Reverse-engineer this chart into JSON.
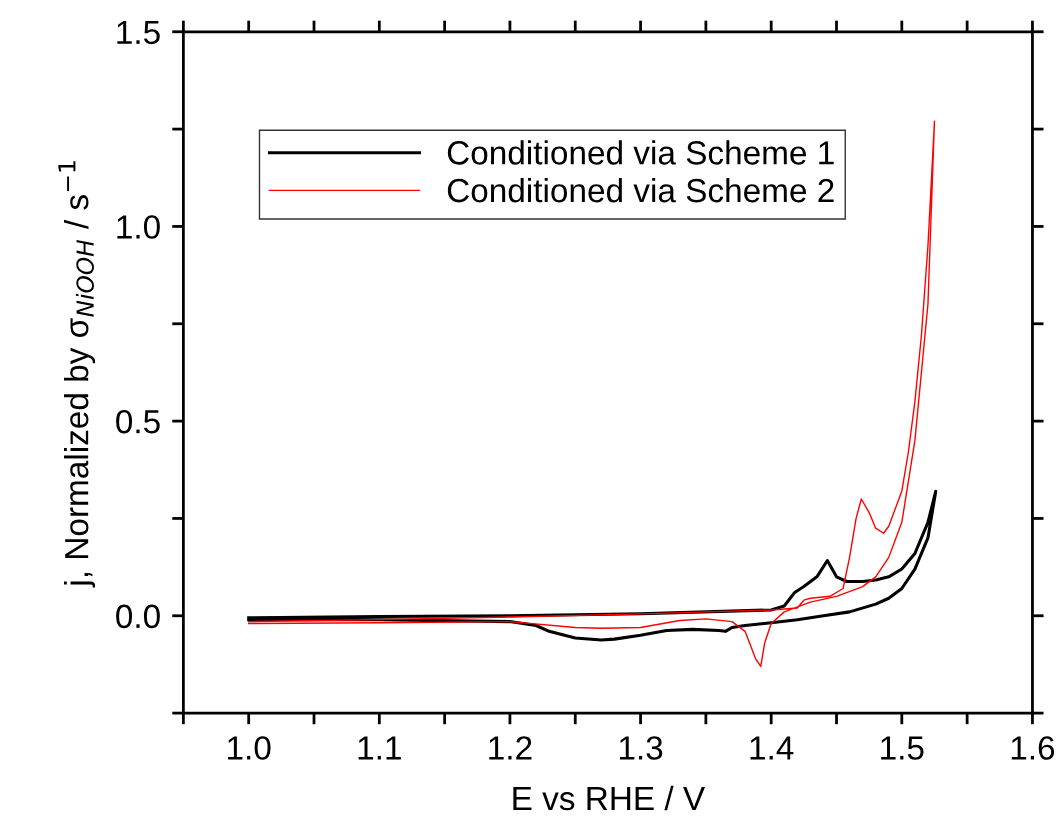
{
  "chart_data": {
    "type": "line",
    "xlabel": "E vs RHE / V",
    "ylabel": "j, Normalized by σ$_{NiOOH}$ / s$^{−1}$",
    "xlim": [
      0.95,
      1.6
    ],
    "ylim": [
      -0.25,
      1.5
    ],
    "xticks": [
      {
        "value": 0.95,
        "label": null
      },
      {
        "value": 1.0,
        "label": "1.0"
      },
      {
        "value": 1.05,
        "label": null
      },
      1.1,
      {
        "value": 1.15,
        "label": null
      },
      1.2,
      {
        "value": 1.25,
        "label": null
      },
      1.3,
      {
        "value": 1.35,
        "label": null
      },
      1.4,
      {
        "value": 1.45,
        "label": null
      },
      1.5,
      {
        "value": 1.55,
        "label": null
      },
      1.6
    ],
    "yticks": [
      {
        "value": -0.25,
        "label": null
      },
      {
        "value": 0.0,
        "label": "0.0"
      },
      {
        "value": 0.25,
        "label": null
      },
      0.5,
      {
        "value": 0.75,
        "label": null
      },
      {
        "value": 1.0,
        "label": "1.0"
      },
      {
        "value": 1.25,
        "label": null
      },
      1.5
    ],
    "legend": "top left",
    "grid": false,
    "marker": "none",
    "line_style": "solid",
    "series": [
      {
        "name": "Conditioned via Scheme 1",
        "color": "#000000",
        "x": [
          1.0,
          1.1,
          1.2,
          1.3,
          1.4,
          1.41,
          1.418,
          1.425,
          1.435,
          1.443,
          1.45,
          1.458,
          1.47,
          1.48,
          1.49,
          1.5,
          1.51,
          1.52,
          1.526,
          1.52,
          1.51,
          1.5,
          1.49,
          1.48,
          1.46,
          1.44,
          1.42,
          1.4,
          1.38,
          1.37,
          1.365,
          1.36,
          1.34,
          1.32,
          1.3,
          1.28,
          1.27,
          1.25,
          1.23,
          1.22,
          1.2,
          1.1,
          1.0
        ],
        "values": [
          -0.005,
          -0.002,
          0.0,
          0.005,
          0.015,
          0.025,
          0.06,
          0.075,
          0.1,
          0.142,
          0.1,
          0.088,
          0.088,
          0.092,
          0.1,
          0.12,
          0.16,
          0.24,
          0.32,
          0.2,
          0.12,
          0.07,
          0.045,
          0.03,
          0.01,
          0.0,
          -0.01,
          -0.018,
          -0.025,
          -0.03,
          -0.04,
          -0.038,
          -0.035,
          -0.038,
          -0.05,
          -0.06,
          -0.062,
          -0.057,
          -0.04,
          -0.025,
          -0.015,
          -0.01,
          -0.01
        ]
      },
      {
        "name": "Conditioned via Scheme 2",
        "color": "#ff0000",
        "x": [
          1.0,
          1.1,
          1.2,
          1.3,
          1.4,
          1.42,
          1.425,
          1.43,
          1.445,
          1.455,
          1.46,
          1.465,
          1.469,
          1.475,
          1.48,
          1.486,
          1.49,
          1.5,
          1.505,
          1.51,
          1.515,
          1.52,
          1.525,
          1.52,
          1.51,
          1.5,
          1.49,
          1.48,
          1.47,
          1.45,
          1.43,
          1.41,
          1.4,
          1.395,
          1.392,
          1.388,
          1.38,
          1.37,
          1.35,
          1.33,
          1.3,
          1.27,
          1.25,
          1.2,
          1.1,
          1.0
        ],
        "values": [
          -0.015,
          -0.01,
          -0.003,
          0.005,
          0.015,
          0.02,
          0.04,
          0.045,
          0.05,
          0.07,
          0.15,
          0.25,
          0.3,
          0.265,
          0.225,
          0.212,
          0.23,
          0.32,
          0.42,
          0.55,
          0.72,
          0.95,
          1.27,
          0.8,
          0.45,
          0.24,
          0.15,
          0.1,
          0.075,
          0.05,
          0.035,
          0.01,
          -0.02,
          -0.07,
          -0.13,
          -0.11,
          -0.04,
          -0.015,
          -0.008,
          -0.012,
          -0.03,
          -0.032,
          -0.03,
          -0.015,
          -0.018,
          -0.02
        ]
      }
    ]
  }
}
